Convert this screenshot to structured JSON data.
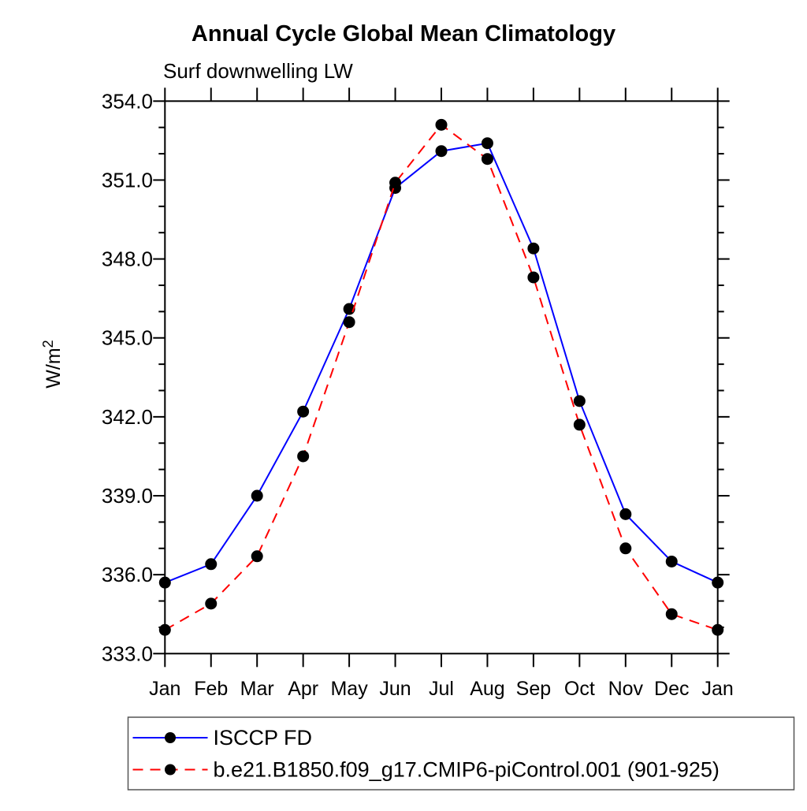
{
  "chart_data": {
    "type": "line",
    "title": "Annual Cycle Global Mean Climatology",
    "subtitle": "Surf downwelling LW",
    "ylabel": "W/m",
    "ylabel_superscript": "2",
    "xlabel": "",
    "x_categories": [
      "Jan",
      "Feb",
      "Mar",
      "Apr",
      "May",
      "Jun",
      "Jul",
      "Aug",
      "Sep",
      "Oct",
      "Nov",
      "Dec",
      "Jan"
    ],
    "ylim": [
      333.0,
      354.0
    ],
    "y_major_ticks": [
      333.0,
      336.0,
      339.0,
      342.0,
      345.0,
      348.0,
      351.0,
      354.0
    ],
    "y_minor_tick_step": 1.0,
    "y_tick_decimals": 1,
    "grid": "off",
    "frame": "box-with-outward-ticks",
    "series": [
      {
        "name": "ISCCP FD",
        "color": "#0000ff",
        "line_style": "solid",
        "marker": "filled-circle",
        "marker_color": "#000000",
        "values": [
          335.7,
          336.4,
          339.0,
          342.2,
          346.1,
          350.7,
          352.1,
          352.4,
          348.4,
          342.6,
          338.3,
          336.5,
          335.7
        ]
      },
      {
        "name": "b.e21.B1850.f09_g17.CMIP6-piControl.001 (901-925)",
        "color": "#ff0000",
        "line_style": "dashed",
        "marker": "filled-circle",
        "marker_color": "#000000",
        "values": [
          333.9,
          334.9,
          336.7,
          340.5,
          345.6,
          350.9,
          353.1,
          351.8,
          347.3,
          341.7,
          337.0,
          334.5,
          333.9
        ]
      }
    ],
    "legend": {
      "position": "bottom-left",
      "border_color": "#555555",
      "background": "#ffffff"
    }
  }
}
